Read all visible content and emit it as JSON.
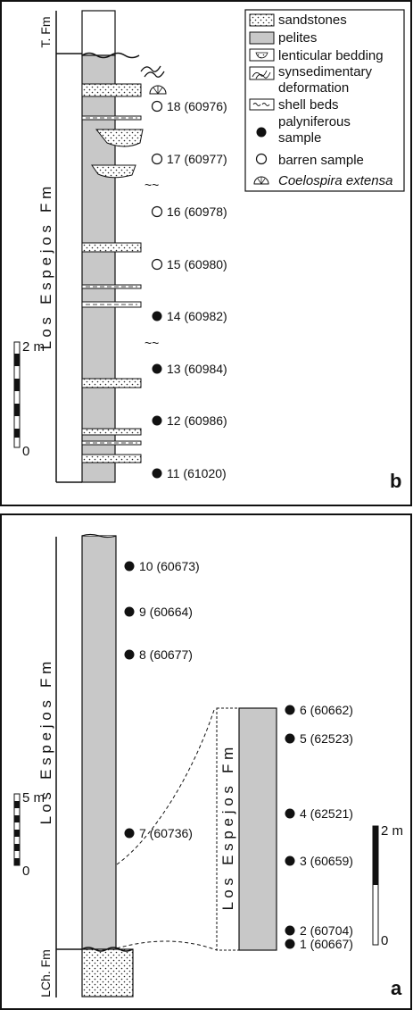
{
  "legend": {
    "sandstones": "sandstones",
    "pelites": "pelites",
    "lenticular": "lenticular bedding",
    "synsed1": "synsedimentary",
    "synsed2": "deformation",
    "shell": "shell beds",
    "palyn1": "palyniferous",
    "palyn2": "sample",
    "barren": "barren sample",
    "coelospira": "Coelospira extensa"
  },
  "panel_b": {
    "letter": "b",
    "formation_top": "T. Fm",
    "formation_main": "L o s   E s p e j o s   F m",
    "scale_label": "2 m",
    "scale_zero": "0",
    "samples": [
      {
        "label": "18 (60976)",
        "type": "barren"
      },
      {
        "label": "17 (60977)",
        "type": "barren"
      },
      {
        "label": "16 (60978)",
        "type": "barren"
      },
      {
        "label": "15 (60980)",
        "type": "barren"
      },
      {
        "label": "14 (60982)",
        "type": "palyniferous"
      },
      {
        "label": "13 (60984)",
        "type": "palyniferous"
      },
      {
        "label": "12 (60986)",
        "type": "palyniferous"
      },
      {
        "label": "11 (61020)",
        "type": "palyniferous"
      }
    ]
  },
  "panel_a": {
    "letter": "a",
    "formation_main": "L o s   E s p e j o s   F m",
    "formation_base": "LCh. Fm",
    "formation_inset": "L o s   E s p e j o s   F m",
    "scale_left_label": "5 m",
    "scale_left_zero": "0",
    "scale_right_label": "2 m",
    "scale_right_zero": "0",
    "samples_main": [
      {
        "label": "10 (60673)",
        "type": "palyniferous"
      },
      {
        "label": "9 (60664)",
        "type": "palyniferous"
      },
      {
        "label": "8 (60677)",
        "type": "palyniferous"
      },
      {
        "label": "7 (60736)",
        "type": "palyniferous"
      }
    ],
    "samples_inset": [
      {
        "label": "6 (60662)",
        "type": "palyniferous"
      },
      {
        "label": "5 (62523)",
        "type": "palyniferous"
      },
      {
        "label": "4 (62521)",
        "type": "palyniferous"
      },
      {
        "label": "3 (60659)",
        "type": "palyniferous"
      },
      {
        "label": "2 (60704)",
        "type": "palyniferous"
      },
      {
        "label": "1 (60667)",
        "type": "palyniferous"
      }
    ]
  }
}
